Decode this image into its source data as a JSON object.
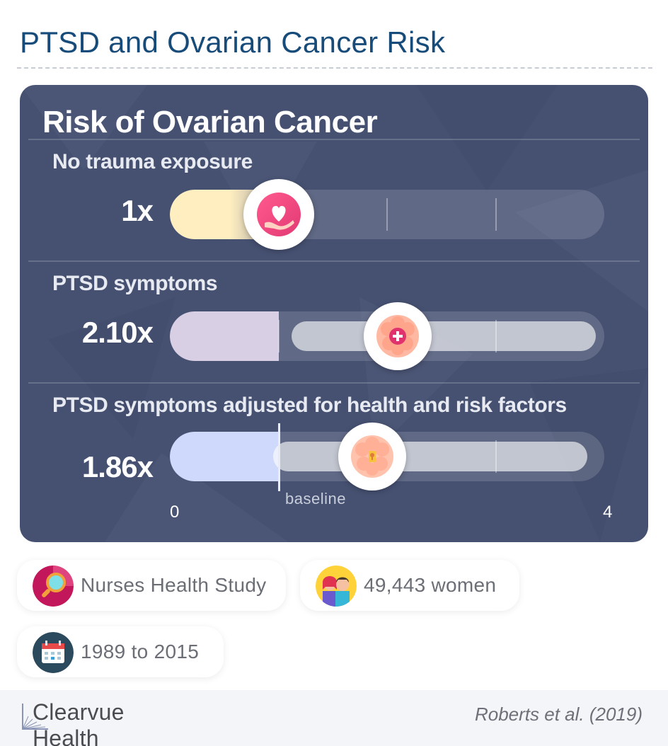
{
  "page": {
    "title": "PTSD and Ovarian Cancer Risk"
  },
  "panel": {
    "title": "Risk of Ovarian Cancer"
  },
  "chart_data": {
    "type": "bar",
    "orientation": "horizontal",
    "title": "Risk of Ovarian Cancer",
    "categories": [
      "No trauma exposure",
      "PTSD symptoms",
      "PTSD symptoms adjusted for health and risk factors"
    ],
    "values": [
      1,
      2.1,
      1.86
    ],
    "value_labels": [
      "1x",
      "2.10x",
      "1.86x"
    ],
    "xlim": [
      0,
      4
    ],
    "axis_labels": {
      "min": "0",
      "max": "4"
    },
    "baseline": {
      "value": 1,
      "label": "baseline"
    },
    "bar_colors": [
      "#ffeec0",
      "#d9cfe4",
      "#cfd9fb"
    ],
    "marker_icons": [
      "heart-hand-icon",
      "brain-plus-icon",
      "brain-keyhole-icon"
    ]
  },
  "info": {
    "study": "Nurses Health Study",
    "participants": "49,443 women",
    "period": "1989 to 2015"
  },
  "footer": {
    "brand": "Clearvue Health",
    "citation": "Roberts et al. (2019)"
  }
}
